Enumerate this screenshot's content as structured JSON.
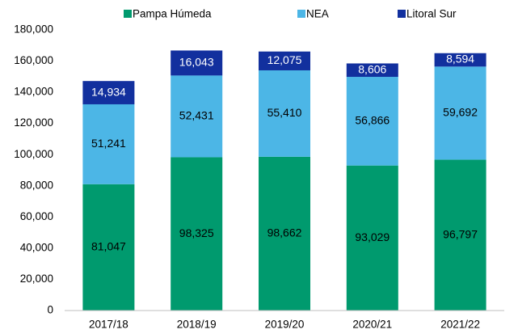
{
  "chart_data": {
    "type": "stacked_bar",
    "categories": [
      "2017/18",
      "2018/19",
      "2019/20",
      "2020/21",
      "2021/22"
    ],
    "series": [
      {
        "name": "Pampa Húmeda",
        "color": "#009a6e",
        "values": [
          81047,
          98325,
          98662,
          93029,
          96797
        ],
        "value_labels": [
          "81,047",
          "98,325",
          "98,662",
          "93,029",
          "96,797"
        ]
      },
      {
        "name": "NEA",
        "color": "#4cb6e6",
        "values": [
          51241,
          52431,
          55410,
          56866,
          59692
        ],
        "value_labels": [
          "51,241",
          "52,431",
          "55,410",
          "56,866",
          "59,692"
        ]
      },
      {
        "name": "Litoral Sur",
        "color": "#12309e",
        "values": [
          14934,
          16043,
          12075,
          8606,
          8594
        ],
        "value_labels": [
          "14,934",
          "16,043",
          "12,075",
          "8,606",
          "8,594"
        ]
      }
    ],
    "ylim": [
      0,
      180000
    ],
    "yticks": [
      0,
      {
        "value": 20000,
        "label": "20,000"
      },
      {
        "value": 40000,
        "label": "40,000"
      },
      {
        "value": 60000,
        "label": "60,000"
      },
      {
        "value": 80000,
        "label": "80,000"
      },
      {
        "value": 100000,
        "label": "100,000"
      },
      {
        "value": 120000,
        "label": "120,000"
      },
      {
        "value": 140000,
        "label": "140,000"
      },
      {
        "value": 160000,
        "label": "160,000"
      },
      {
        "value": 180000,
        "label": "180,000"
      }
    ],
    "grid": false,
    "legend": "top"
  }
}
